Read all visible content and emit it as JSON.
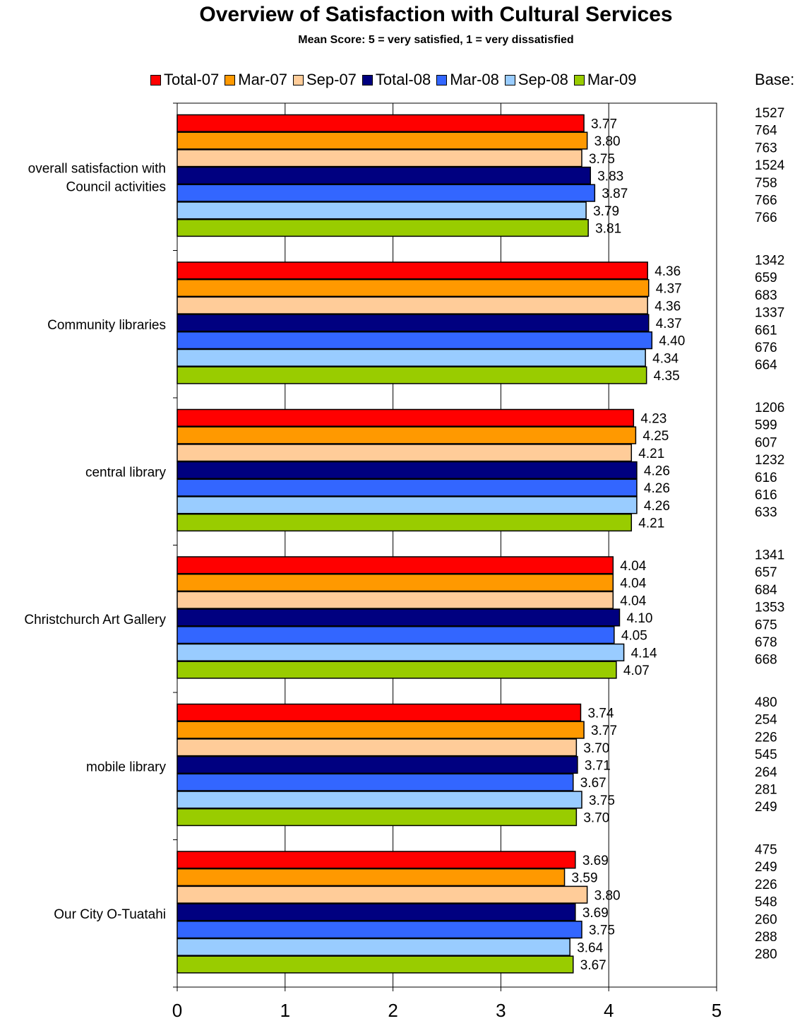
{
  "chart_data": {
    "type": "bar",
    "orientation": "horizontal",
    "title": "Overview of Satisfaction with Cultural Services",
    "subtitle": "Mean Score: 5 = very satisfied,  1 = very dissatisfied",
    "base_header": "Base:",
    "xlim": [
      0,
      5
    ],
    "x_ticks": [
      "0",
      "1",
      "2",
      "3",
      "4",
      "5"
    ],
    "grid": true,
    "legend_position": "top",
    "categories": [
      [
        "overall satisfaction with",
        "Council activities"
      ],
      [
        "Community libraries"
      ],
      [
        "central library"
      ],
      [
        "Christchurch Art Gallery"
      ],
      [
        "mobile library"
      ],
      [
        "Our City O-Tuatahi"
      ]
    ],
    "series": [
      {
        "name": "Total-07",
        "color": "#ff0000",
        "values": [
          "3.77",
          "4.36",
          "4.23",
          "4.04",
          "3.74",
          "3.69"
        ],
        "base": [
          "1527",
          "1342",
          "1206",
          "1341",
          "480",
          "475"
        ]
      },
      {
        "name": "Mar-07",
        "color": "#ff9900",
        "values": [
          "3.80",
          "4.37",
          "4.25",
          "4.04",
          "3.77",
          "3.59"
        ],
        "base": [
          "764",
          "659",
          "599",
          "657",
          "254",
          "249"
        ]
      },
      {
        "name": "Sep-07",
        "color": "#ffcc99",
        "values": [
          "3.75",
          "4.36",
          "4.21",
          "4.04",
          "3.70",
          "3.80"
        ],
        "base": [
          "763",
          "683",
          "607",
          "684",
          "226",
          "226"
        ]
      },
      {
        "name": "Total-08",
        "color": "#000080",
        "values": [
          "3.83",
          "4.37",
          "4.26",
          "4.10",
          "3.71",
          "3.69"
        ],
        "base": [
          "1524",
          "1337",
          "1232",
          "1353",
          "545",
          "548"
        ]
      },
      {
        "name": "Mar-08",
        "color": "#3366ff",
        "values": [
          "3.87",
          "4.40",
          "4.26",
          "4.05",
          "3.67",
          "3.75"
        ],
        "base": [
          "758",
          "661",
          "616",
          "675",
          "264",
          "260"
        ]
      },
      {
        "name": "Sep-08",
        "color": "#99ccff",
        "values": [
          "3.79",
          "4.34",
          "4.26",
          "4.14",
          "3.75",
          "3.64"
        ],
        "base": [
          "766",
          "676",
          "616",
          "678",
          "281",
          "288"
        ]
      },
      {
        "name": "Mar-09",
        "color": "#99cc00",
        "values": [
          "3.81",
          "4.35",
          "4.21",
          "4.07",
          "3.70",
          "3.67"
        ],
        "base": [
          "766",
          "664",
          "633",
          "668",
          "249",
          "280"
        ]
      }
    ]
  }
}
